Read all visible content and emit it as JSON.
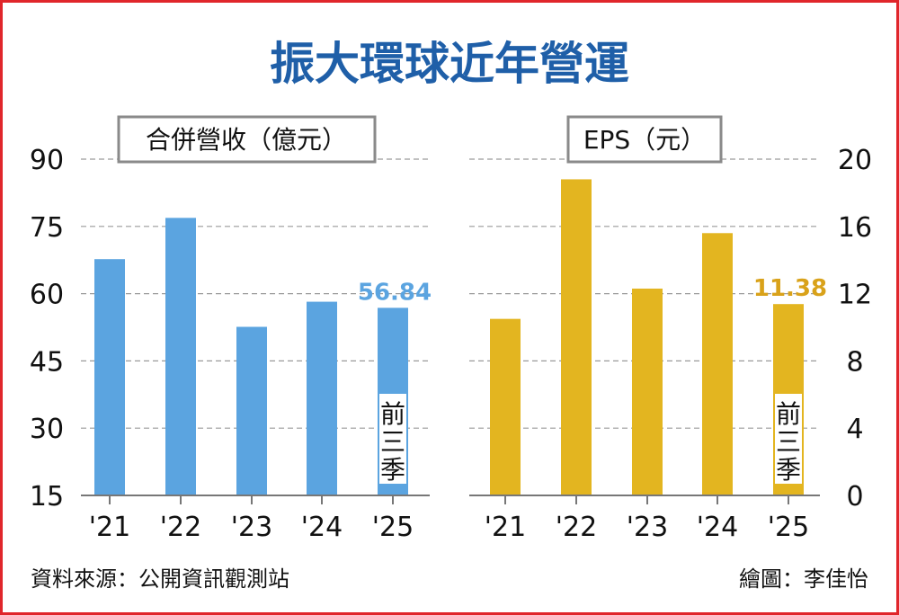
{
  "page_title": "振大環球近年營運",
  "source_note": "資料來源：公開資訊觀測站",
  "credit_note": "繪圖：李佳怡",
  "colors": {
    "border": "#e0262b",
    "title": "#1f5fa8",
    "revenue_bar": "#5ba4e0",
    "eps_bar": "#e3b520",
    "revenue_label": "#5ba4e0",
    "eps_label": "#d9a21a"
  },
  "chart_data": [
    {
      "type": "bar",
      "title": "合併營收（億元）",
      "categories": [
        "'21",
        "'22",
        "'23",
        "'24",
        "'25"
      ],
      "values": [
        67.7,
        76.9,
        52.6,
        58.2,
        56.84
      ],
      "ylim": [
        15,
        90
      ],
      "yticks": [
        "15",
        "30",
        "45",
        "60",
        "75",
        "90"
      ],
      "y_axis_side": "left",
      "grid": true,
      "value_label": {
        "index": 4,
        "text": "56.84"
      },
      "bar_note": {
        "index": 4,
        "chars": [
          "前",
          "三",
          "季"
        ]
      }
    },
    {
      "type": "bar",
      "title": "EPS（元）",
      "categories": [
        "'21",
        "'22",
        "'23",
        "'24",
        "'25"
      ],
      "values": [
        10.5,
        18.8,
        12.3,
        15.6,
        11.38
      ],
      "ylim": [
        0,
        20
      ],
      "yticks": [
        "0",
        "4",
        "8",
        "12",
        "16",
        "20"
      ],
      "y_axis_side": "right",
      "grid": true,
      "value_label": {
        "index": 4,
        "text": "11.38"
      },
      "bar_note": {
        "index": 4,
        "chars": [
          "前",
          "三",
          "季"
        ]
      }
    }
  ]
}
